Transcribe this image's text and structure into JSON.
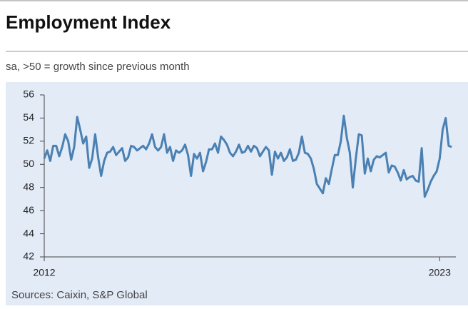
{
  "chart_data": {
    "type": "line",
    "title": "Employment Index",
    "subtitle": "sa, >50 = growth since previous month",
    "source": "Sources: Caixin, S&P Global",
    "x": [
      2012,
      2012.083,
      2012.167,
      2012.25,
      2012.333,
      2012.417,
      2012.5,
      2012.583,
      2012.667,
      2012.75,
      2012.833,
      2012.917,
      2013,
      2013.083,
      2013.167,
      2013.25,
      2013.333,
      2013.417,
      2013.5,
      2013.583,
      2013.667,
      2013.75,
      2013.833,
      2013.917,
      2014,
      2014.083,
      2014.167,
      2014.25,
      2014.333,
      2014.417,
      2014.5,
      2014.583,
      2014.667,
      2014.75,
      2014.833,
      2014.917,
      2015,
      2015.083,
      2015.167,
      2015.25,
      2015.333,
      2015.417,
      2015.5,
      2015.583,
      2015.667,
      2015.75,
      2015.833,
      2015.917,
      2016,
      2016.083,
      2016.167,
      2016.25,
      2016.333,
      2016.417,
      2016.5,
      2016.583,
      2016.667,
      2016.75,
      2016.833,
      2016.917,
      2017,
      2017.083,
      2017.167,
      2017.25,
      2017.333,
      2017.417,
      2017.5,
      2017.583,
      2017.667,
      2017.75,
      2017.833,
      2017.917,
      2018,
      2018.083,
      2018.167,
      2018.25,
      2018.333,
      2018.417,
      2018.5,
      2018.583,
      2018.667,
      2018.75,
      2018.833,
      2018.917,
      2019,
      2019.083,
      2019.167,
      2019.25,
      2019.333,
      2019.417,
      2019.5,
      2019.583,
      2019.667,
      2019.75,
      2019.833,
      2019.917,
      2020,
      2020.083,
      2020.167,
      2020.25,
      2020.333,
      2020.417,
      2020.5,
      2020.583,
      2020.667,
      2020.75,
      2020.833,
      2020.917,
      2021,
      2021.083,
      2021.167,
      2021.25,
      2021.333,
      2021.417,
      2021.5,
      2021.583,
      2021.667,
      2021.75,
      2021.833,
      2021.917,
      2022,
      2022.083,
      2022.167,
      2022.25,
      2022.333,
      2022.417,
      2022.5,
      2022.583,
      2022.667,
      2022.75,
      2022.833,
      2022.917,
      2023,
      2023.083,
      2023.167,
      2023.25,
      2023.333
    ],
    "series": [
      {
        "name": "Employment Index",
        "color": "#4a80b2",
        "values": [
          50.5,
          51.2,
          50.3,
          51.6,
          51.6,
          50.7,
          51.5,
          52.6,
          52.0,
          50.4,
          51.5,
          54.1,
          53.0,
          51.8,
          52.4,
          49.7,
          50.5,
          52.6,
          50.6,
          49.0,
          50.3,
          51.0,
          51.1,
          51.5,
          50.8,
          51.1,
          51.4,
          50.3,
          50.6,
          51.6,
          51.5,
          51.2,
          51.4,
          51.6,
          51.3,
          51.8,
          52.6,
          51.5,
          51.2,
          51.5,
          52.6,
          51.0,
          51.5,
          50.3,
          51.2,
          51.0,
          51.2,
          51.7,
          50.8,
          49.0,
          50.9,
          50.5,
          51.0,
          49.4,
          50.2,
          51.3,
          51.3,
          51.8,
          51.0,
          52.4,
          52.1,
          51.7,
          51.0,
          50.7,
          51.1,
          51.7,
          51.0,
          51.1,
          51.6,
          51.1,
          51.6,
          51.4,
          50.7,
          51.1,
          51.5,
          51.2,
          49.1,
          51.1,
          50.5,
          51.0,
          50.3,
          50.6,
          51.3,
          50.3,
          50.4,
          51.0,
          52.4,
          51.0,
          50.9,
          50.5,
          49.6,
          48.3,
          47.9,
          47.5,
          48.8,
          48.3,
          49.6,
          50.8,
          50.8,
          52.0,
          54.2,
          52.3,
          51.0,
          48.0,
          50.5,
          52.6,
          52.5,
          49.2,
          50.5,
          49.4,
          50.4,
          50.7,
          50.6,
          50.8,
          51.0,
          49.3,
          49.9,
          49.8,
          49.3,
          48.6,
          49.5,
          48.7,
          48.9,
          49.0,
          48.6,
          48.5,
          51.4,
          47.2,
          47.8,
          48.5,
          49.0,
          49.4,
          50.5,
          53.0,
          54.0,
          51.6,
          51.5
        ]
      }
    ],
    "xlim": [
      2012,
      2023.45
    ],
    "xticks": [
      2012,
      2023
    ],
    "ylim": [
      42,
      56
    ],
    "yticks": [
      42,
      44,
      46,
      48,
      50,
      52,
      54,
      56
    ],
    "grid": false
  }
}
